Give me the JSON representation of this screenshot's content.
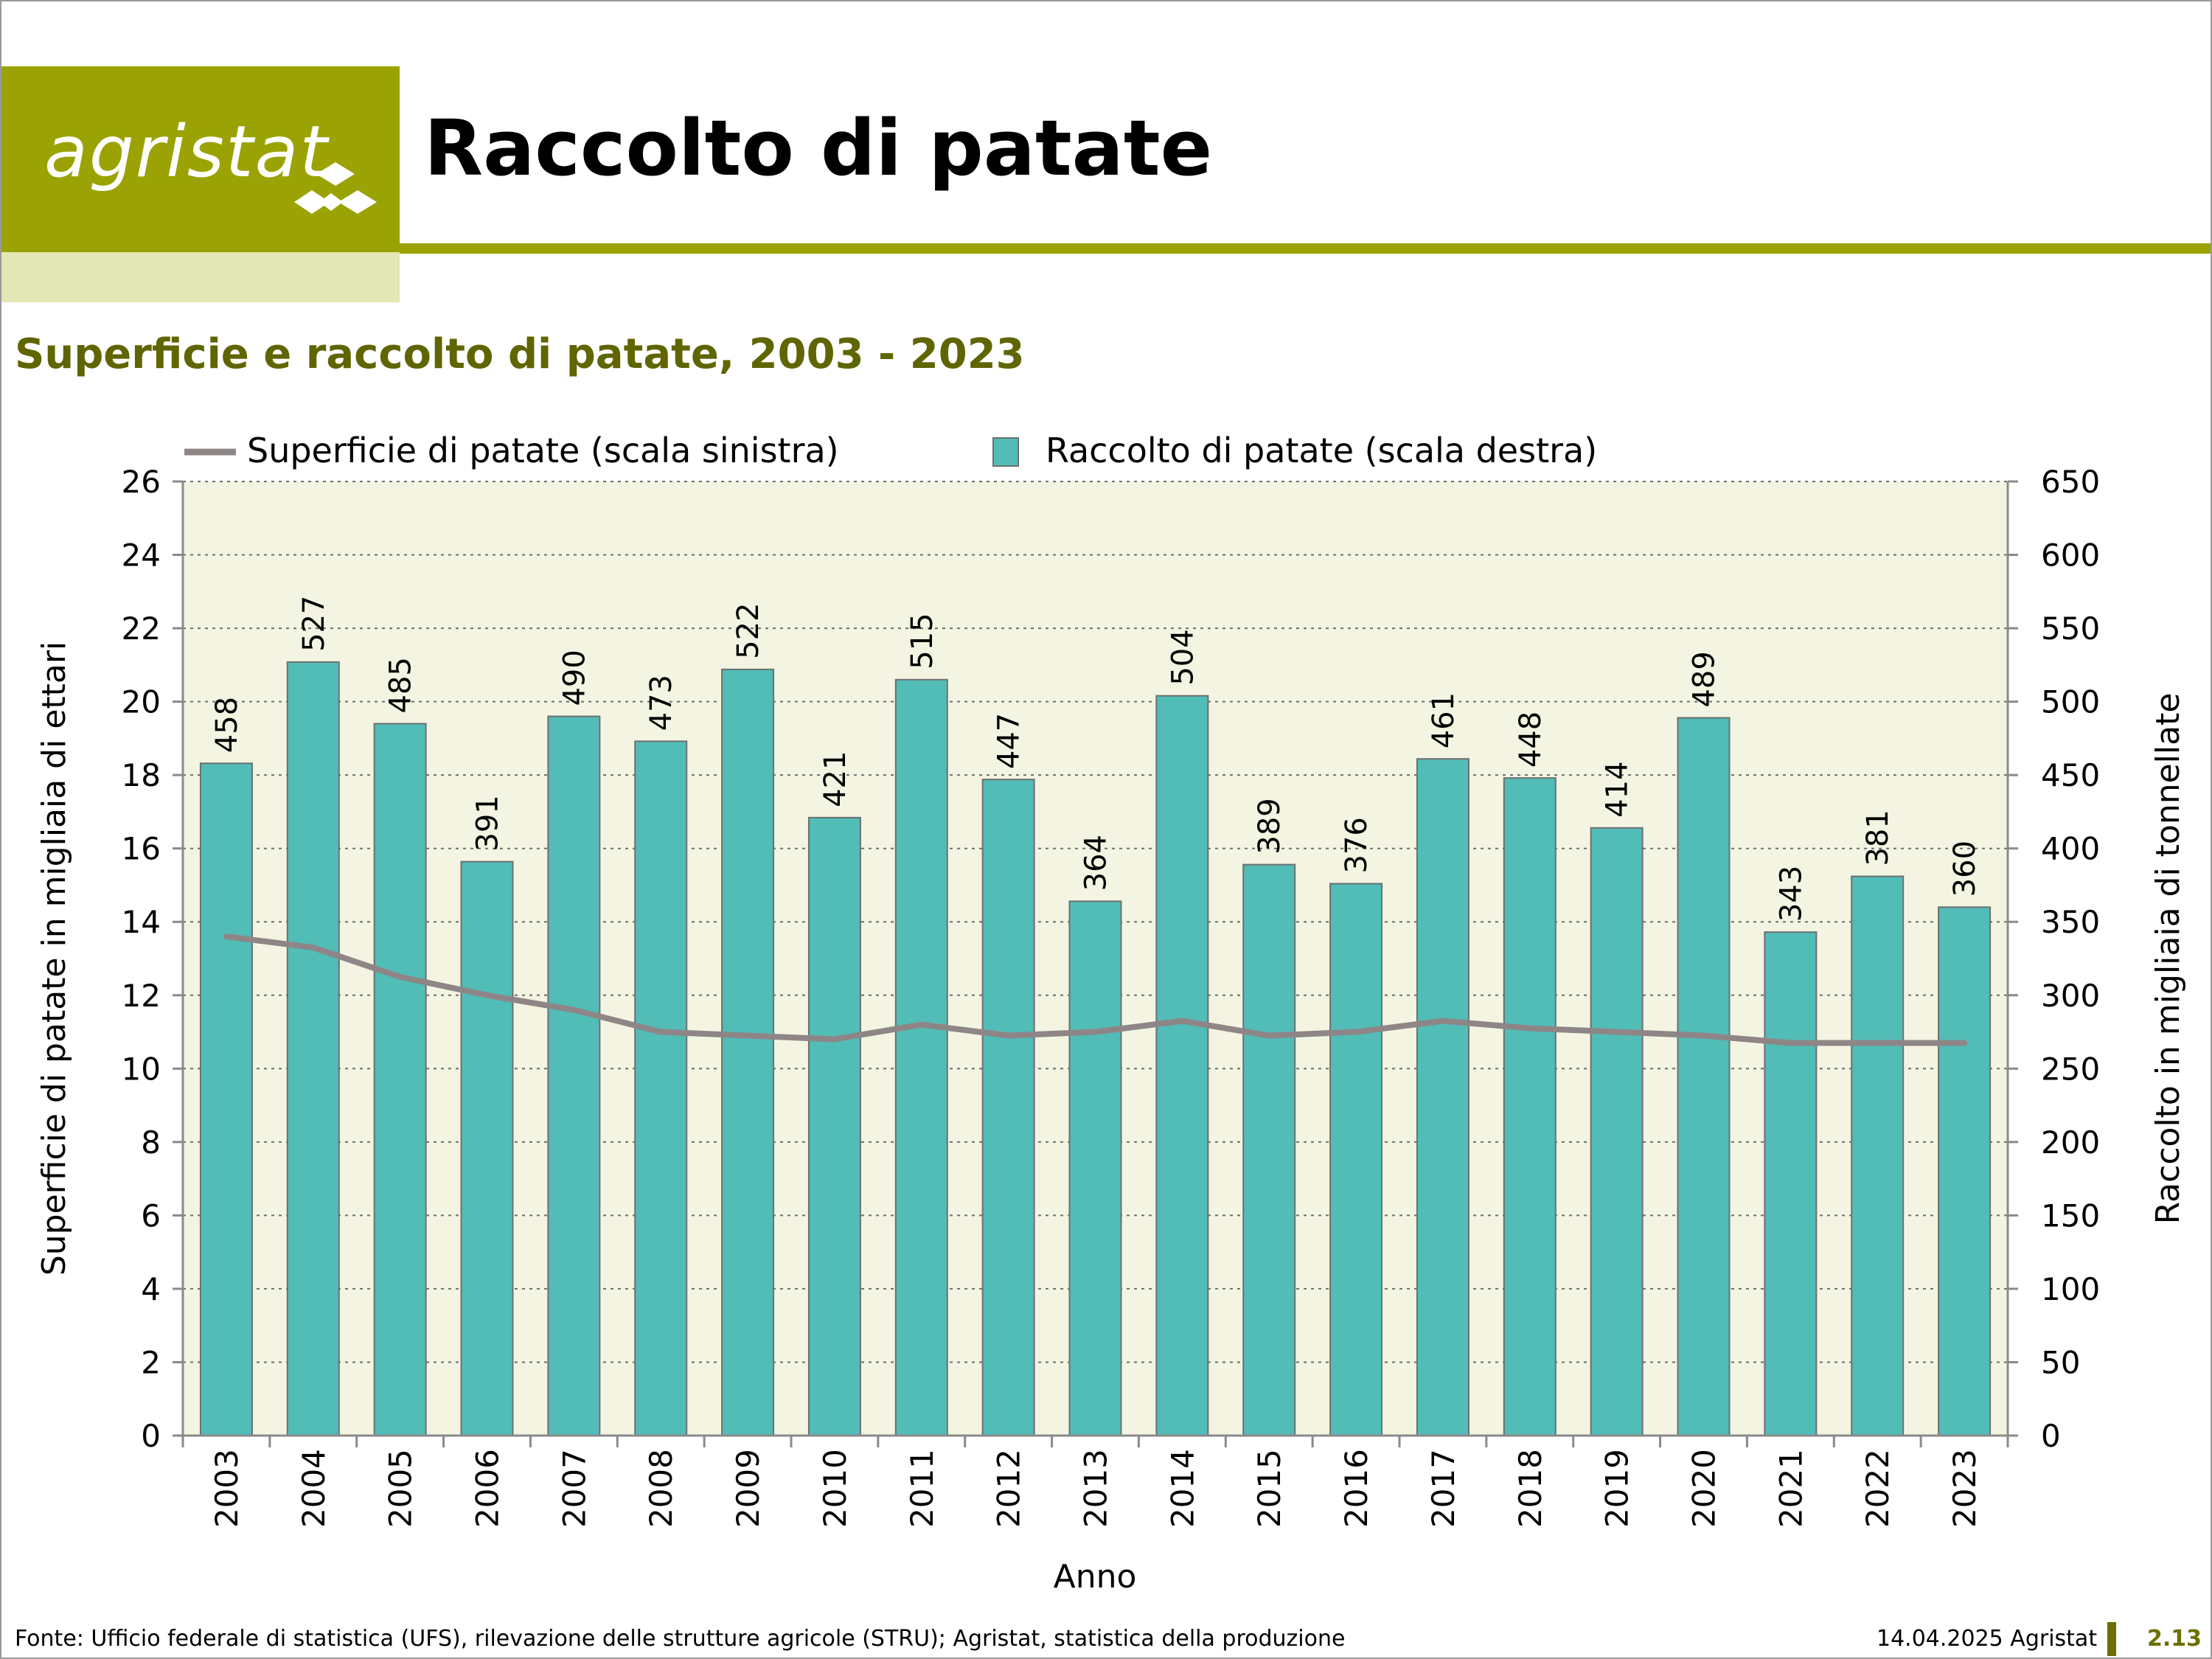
{
  "header": {
    "logo_text": "agristat",
    "title": "Raccolto di patate",
    "subtitle": "Superficie e raccolto di patate, 2003 - 2023"
  },
  "footer": {
    "source": "Fonte: Ufficio federale di statistica (UFS), rilevazione delle strutture agricole (STRU); Agristat, statistica della produzione",
    "date": "14.04.2025 Agristat",
    "page": "2.13"
  },
  "colors": {
    "brand": "#9aa303",
    "brand_light": "#e3e6b5",
    "subtitle": "#5f6500",
    "plot_bg": "#f4f4e3",
    "bar": "#52bcb7",
    "line": "#8e8686"
  },
  "chart_data": {
    "type": "bar",
    "xlabel": "Anno",
    "ylabel_left": "Superficie di patate in migliaia di ettari",
    "ylabel_right": "Raccolto in migliaia di tonnellate",
    "ylim_left": [
      0,
      26
    ],
    "ylim_right": [
      0,
      650
    ],
    "yticks_left": [
      0,
      2,
      4,
      6,
      8,
      10,
      12,
      14,
      16,
      18,
      20,
      22,
      24,
      26
    ],
    "yticks_right": [
      0,
      50,
      100,
      150,
      200,
      250,
      300,
      350,
      400,
      450,
      500,
      550,
      600,
      650
    ],
    "grid": true,
    "legend_position": "top",
    "categories": [
      "2003",
      "2004",
      "2005",
      "2006",
      "2007",
      "2008",
      "2009",
      "2010",
      "2011",
      "2012",
      "2013",
      "2014",
      "2015",
      "2016",
      "2017",
      "2018",
      "2019",
      "2020",
      "2021",
      "2022",
      "2023"
    ],
    "series": [
      {
        "name": "Superficie di patate (scala sinistra)",
        "type": "line",
        "axis": "left",
        "values": [
          13.6,
          13.3,
          12.5,
          12.0,
          11.6,
          11.0,
          10.9,
          10.8,
          11.2,
          10.9,
          11.0,
          11.3,
          10.9,
          11.0,
          11.3,
          11.1,
          11.0,
          10.9,
          10.7,
          10.7,
          10.7
        ]
      },
      {
        "name": "Raccolto di patate (scala destra)",
        "type": "bar",
        "axis": "right",
        "values": [
          458,
          527,
          485,
          391,
          490,
          473,
          522,
          421,
          515,
          447,
          364,
          504,
          389,
          376,
          461,
          448,
          414,
          489,
          343,
          381,
          360
        ]
      }
    ]
  }
}
